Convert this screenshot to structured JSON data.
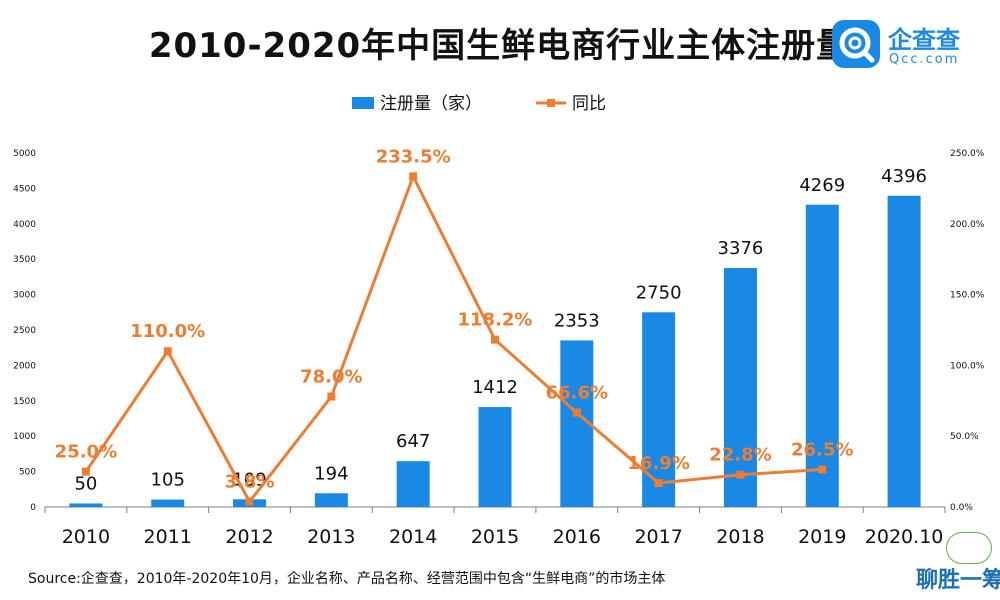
{
  "title": "2010-2020年中国生鲜电商行业主体注册量",
  "logo": {
    "name": "企查查",
    "domain": "Qcc.com",
    "color": "#1a89e6"
  },
  "source": "Source:企查查，2010年-2020年10月，企业名称、产品名称、经营范围中包含“生鲜电商”的市场主体",
  "badge": {
    "word": "聊胜一筹"
  },
  "colors": {
    "bar": "#1a89e6",
    "line": "#ed7d31",
    "bar_label": "#111111",
    "axis_text": "#111111"
  },
  "chart_data": {
    "type": "bar",
    "title": "2010-2020年中国生鲜电商行业主体注册量",
    "categories": [
      "2010",
      "2011",
      "2012",
      "2013",
      "2014",
      "2015",
      "2016",
      "2017",
      "2018",
      "2019",
      "2020.10"
    ],
    "series": [
      {
        "name": "注册量（家）",
        "type": "bar",
        "axis": "left",
        "values": [
          50,
          105,
          109,
          194,
          647,
          1412,
          2353,
          2750,
          3376,
          4269,
          4396
        ],
        "labels": [
          "50",
          "105",
          "109",
          "194",
          "647",
          "1412",
          "2353",
          "2750",
          "3376",
          "4269",
          "4396"
        ]
      },
      {
        "name": "同比",
        "type": "line",
        "axis": "right",
        "values": [
          25.0,
          110.0,
          3.8,
          78.0,
          233.5,
          118.2,
          66.6,
          16.9,
          22.8,
          26.5,
          null
        ],
        "labels": [
          "25.0%",
          "110.0%",
          "3.8%",
          "78.0%",
          "233.5%",
          "118.2%",
          "66.6%",
          "16.9%",
          "22.8%",
          "26.5%",
          null
        ]
      }
    ],
    "y_left": {
      "range": [
        0,
        5000
      ],
      "ticks": [
        "0",
        "500",
        "1000",
        "1500",
        "2000",
        "2500",
        "3000",
        "3500",
        "4000",
        "4500",
        "5000"
      ]
    },
    "y_right": {
      "range": [
        0,
        250
      ],
      "ticks": [
        "0.0%",
        "50.0%",
        "100.0%",
        "150.0%",
        "200.0%",
        "250.0%"
      ]
    },
    "legend_position": "top-center",
    "grid": false
  }
}
